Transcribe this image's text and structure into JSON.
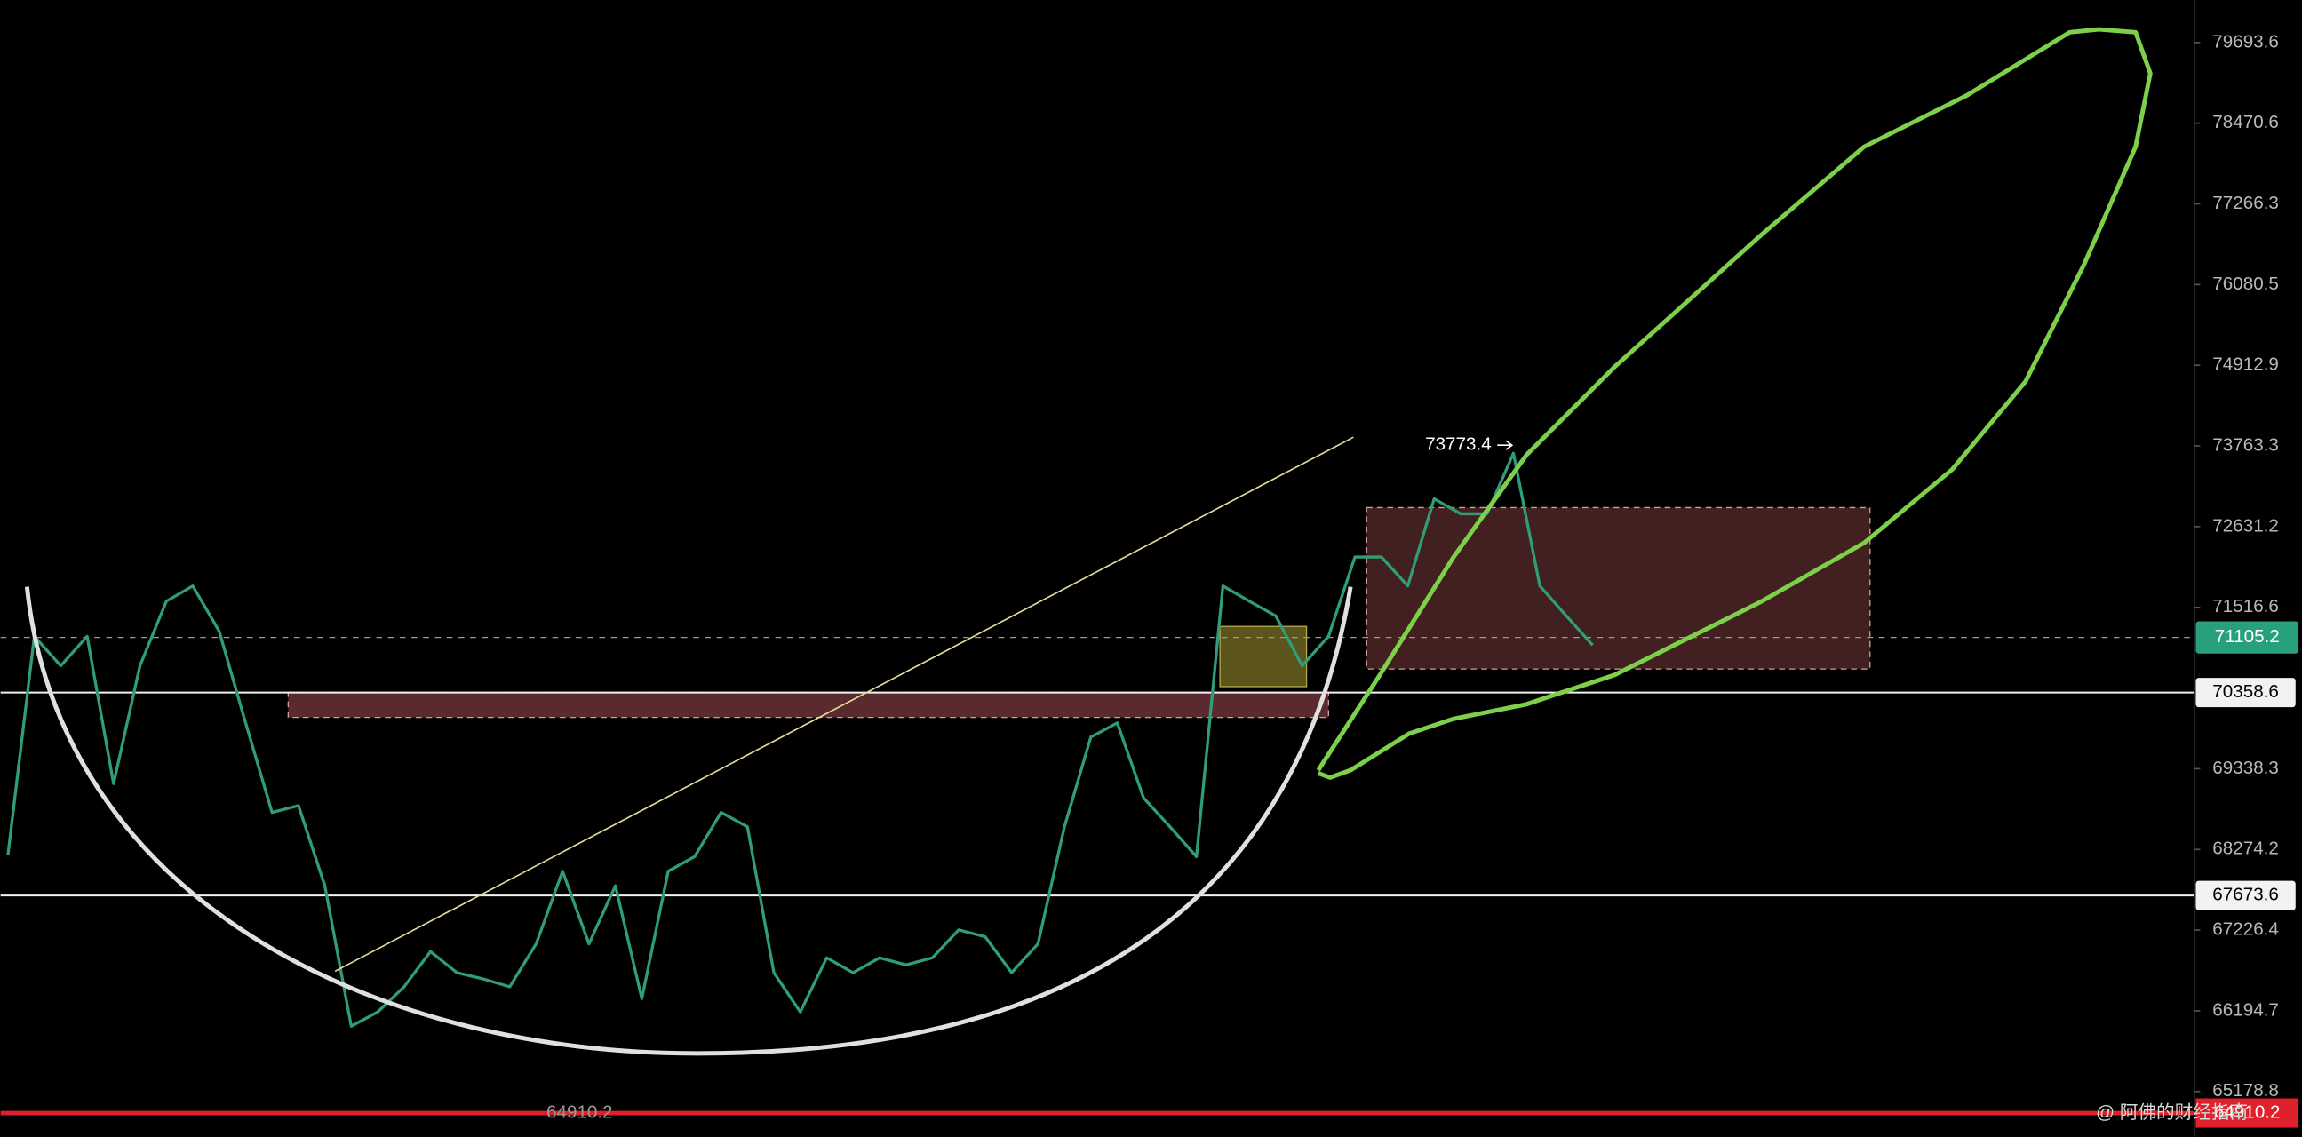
{
  "chart_data": {
    "type": "line",
    "categories": [
      null,
      null,
      null,
      null,
      null,
      null,
      null,
      null,
      null,
      null,
      null,
      null,
      null,
      null,
      null,
      null,
      null,
      null,
      null,
      null,
      null,
      null,
      null,
      null,
      null,
      null,
      null,
      null,
      null,
      null,
      null,
      null,
      null,
      null,
      null,
      null,
      null,
      null,
      null,
      null,
      null,
      null,
      null,
      null,
      null,
      null,
      null,
      null,
      null,
      null,
      null,
      null,
      null,
      null,
      null,
      null,
      null,
      null,
      null,
      null,
      null
    ],
    "values": [
      68200,
      71120,
      70720,
      71120,
      69140,
      70720,
      71600,
      71810,
      71190,
      69950,
      68760,
      68850,
      67800,
      66000,
      66180,
      66500,
      66950,
      66680,
      66600,
      66500,
      67050,
      67990,
      67050,
      67800,
      66350,
      67990,
      68180,
      68760,
      68570,
      66680,
      66180,
      66870,
      66680,
      66870,
      66780,
      66870,
      67230,
      67140,
      66680,
      67050,
      68570,
      69760,
      69950,
      68950,
      68570,
      68180,
      71810,
      71600,
      71400,
      70720,
      71120,
      72210,
      72210,
      71810,
      73020,
      72810,
      72810,
      73660,
      71810,
      71400,
      71000
    ],
    "color": "#2f9e78",
    "log": true,
    "ylim": [
      64613,
      80345
    ],
    "yticks": [
      79693.6,
      78470.6,
      77266.3,
      76080.5,
      74912.9,
      73763.3,
      72631.2,
      71516.6,
      69338.3,
      68274.2,
      67226.4,
      66194.7,
      65178.8
    ],
    "last_price": 71105.2,
    "levels": [
      70358.6,
      67673.6
    ],
    "high_annotation": 73773.4,
    "low_annotation": 64910.2,
    "watermark": "@ 阿佛的财经指南"
  }
}
